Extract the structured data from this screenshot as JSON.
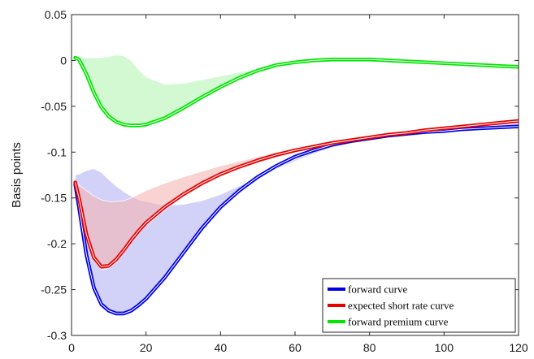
{
  "chart_data": {
    "type": "line",
    "title": "",
    "xlabel": "",
    "ylabel": "Basis points",
    "xlim": [
      0,
      120
    ],
    "ylim": [
      -0.3,
      0.05
    ],
    "x_ticks": [
      "0",
      "20",
      "40",
      "60",
      "80",
      "100",
      "120"
    ],
    "y_ticks": [
      "-0.3",
      "-0.25",
      "-0.2",
      "-0.15",
      "-0.1",
      "-0.05",
      "0",
      "0.05"
    ],
    "grid": false,
    "legend_position": "bottom-right",
    "series": [
      {
        "name": "forward curve",
        "color": "#0000e6",
        "band_color": "#b4b4f5",
        "x": [
          1,
          2,
          4,
          6,
          8,
          10,
          12,
          14,
          16,
          18,
          20,
          25,
          30,
          35,
          40,
          45,
          50,
          55,
          60,
          65,
          70,
          75,
          80,
          85,
          90,
          95,
          100,
          105,
          110,
          115,
          120
        ],
        "values": [
          -0.135,
          -0.16,
          -0.212,
          -0.248,
          -0.266,
          -0.273,
          -0.276,
          -0.276,
          -0.273,
          -0.267,
          -0.26,
          -0.237,
          -0.21,
          -0.183,
          -0.16,
          -0.142,
          -0.127,
          -0.115,
          -0.105,
          -0.098,
          -0.092,
          -0.088,
          -0.085,
          -0.082,
          -0.08,
          -0.078,
          -0.077,
          -0.075,
          -0.074,
          -0.073,
          -0.072
        ],
        "band_upper": [
          -0.125,
          -0.124,
          -0.12,
          -0.118,
          -0.122,
          -0.13,
          -0.137,
          -0.143,
          -0.148,
          -0.152,
          -0.154,
          -0.158,
          -0.157,
          -0.153,
          -0.146,
          -0.137,
          -0.128,
          -0.119,
          -0.11,
          -0.102,
          -0.095,
          -0.09,
          -0.086,
          -0.082,
          -0.079,
          -0.077,
          -0.075,
          -0.073,
          -0.071,
          -0.07,
          -0.069
        ],
        "band_lower": [
          -0.14,
          -0.165,
          -0.216,
          -0.25,
          -0.268,
          -0.276,
          -0.279,
          -0.279,
          -0.276,
          -0.27,
          -0.263,
          -0.24,
          -0.213,
          -0.186,
          -0.163,
          -0.145,
          -0.13,
          -0.118,
          -0.108,
          -0.1,
          -0.094,
          -0.09,
          -0.087,
          -0.084,
          -0.082,
          -0.08,
          -0.078,
          -0.077,
          -0.076,
          -0.075,
          -0.074
        ]
      },
      {
        "name": "expected short rate curve",
        "color": "#e60000",
        "band_color": "#f5b4b4",
        "x": [
          1,
          2,
          4,
          6,
          8,
          10,
          12,
          14,
          16,
          18,
          20,
          25,
          30,
          35,
          40,
          45,
          50,
          55,
          60,
          65,
          70,
          75,
          80,
          85,
          90,
          95,
          100,
          105,
          110,
          115,
          120
        ],
        "values": [
          -0.133,
          -0.15,
          -0.19,
          -0.215,
          -0.225,
          -0.224,
          -0.217,
          -0.207,
          -0.196,
          -0.186,
          -0.177,
          -0.16,
          -0.146,
          -0.134,
          -0.124,
          -0.116,
          -0.109,
          -0.103,
          -0.098,
          -0.094,
          -0.09,
          -0.087,
          -0.084,
          -0.081,
          -0.079,
          -0.076,
          -0.074,
          -0.072,
          -0.07,
          -0.068,
          -0.066
        ],
        "band_upper": [
          -0.133,
          -0.136,
          -0.142,
          -0.148,
          -0.152,
          -0.154,
          -0.154,
          -0.153,
          -0.15,
          -0.146,
          -0.142,
          -0.134,
          -0.127,
          -0.121,
          -0.115,
          -0.11,
          -0.105,
          -0.1,
          -0.096,
          -0.092,
          -0.089,
          -0.086,
          -0.083,
          -0.08,
          -0.077,
          -0.075,
          -0.073,
          -0.071,
          -0.069,
          -0.067,
          -0.065
        ],
        "band_lower": [
          -0.136,
          -0.153,
          -0.193,
          -0.218,
          -0.228,
          -0.227,
          -0.22,
          -0.21,
          -0.199,
          -0.189,
          -0.18,
          -0.163,
          -0.149,
          -0.137,
          -0.127,
          -0.119,
          -0.112,
          -0.106,
          -0.101,
          -0.096,
          -0.092,
          -0.089,
          -0.086,
          -0.083,
          -0.081,
          -0.078,
          -0.076,
          -0.074,
          -0.072,
          -0.07,
          -0.068
        ]
      },
      {
        "name": "forward premium curve",
        "color": "#00e600",
        "band_color": "#b4f5b4",
        "x": [
          1,
          2,
          4,
          6,
          8,
          10,
          12,
          14,
          16,
          18,
          20,
          25,
          30,
          35,
          40,
          45,
          50,
          55,
          60,
          65,
          70,
          75,
          80,
          85,
          90,
          95,
          100,
          105,
          110,
          115,
          120
        ],
        "values": [
          0.003,
          0.001,
          -0.015,
          -0.035,
          -0.051,
          -0.061,
          -0.067,
          -0.07,
          -0.071,
          -0.071,
          -0.07,
          -0.063,
          -0.052,
          -0.04,
          -0.029,
          -0.019,
          -0.011,
          -0.005,
          -0.002,
          0,
          0.001,
          0.001,
          0.001,
          0,
          -0.001,
          -0.002,
          -0.003,
          -0.004,
          -0.005,
          -0.006,
          -0.007
        ],
        "band_upper": [
          0.004,
          0.004,
          0.003,
          0.003,
          0.003,
          0.004,
          0.006,
          0.005,
          0.0,
          -0.01,
          -0.018,
          -0.026,
          -0.025,
          -0.021,
          -0.017,
          -0.013,
          -0.009,
          -0.006,
          -0.003,
          -0.001,
          0.0,
          0.001,
          0.001,
          0.001,
          0.0,
          -0.001,
          -0.001,
          -0.002,
          -0.003,
          -0.004,
          -0.005
        ],
        "band_lower": [
          0.001,
          -0.001,
          -0.017,
          -0.037,
          -0.053,
          -0.063,
          -0.069,
          -0.072,
          -0.073,
          -0.073,
          -0.072,
          -0.065,
          -0.054,
          -0.042,
          -0.031,
          -0.021,
          -0.013,
          -0.007,
          -0.004,
          -0.002,
          -0.001,
          -0.001,
          -0.001,
          -0.002,
          -0.003,
          -0.004,
          -0.005,
          -0.006,
          -0.007,
          -0.008,
          -0.009
        ]
      }
    ]
  }
}
